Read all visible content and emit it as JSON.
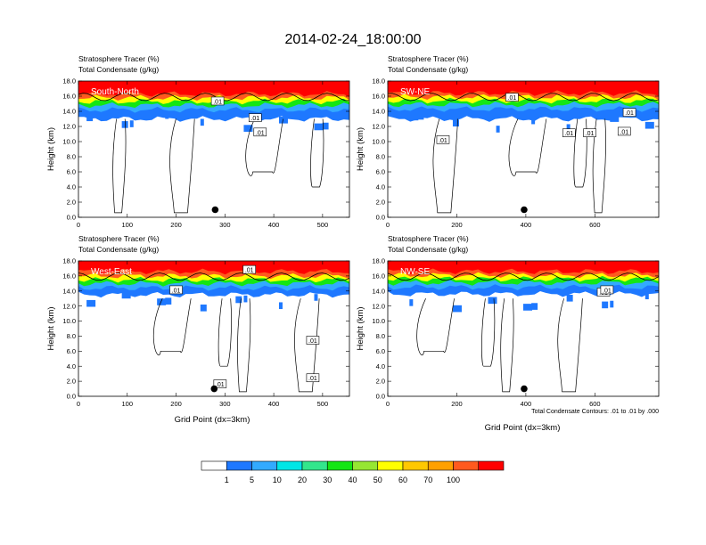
{
  "figure": {
    "title": "2014-02-24_18:00:00",
    "x_axis_label": "Grid Point (dx=3km)",
    "y_axis_label": "Height (km)",
    "contour_note": "Total Condensate Contours: .01 to .01 by .000"
  },
  "panels": [
    {
      "id": "south-north",
      "section_label": "South-North",
      "header_line1": "Stratosphere Tracer   (%)",
      "header_line2": "Total Condensate   (g/kg)",
      "x_ticks": [
        "0",
        "100",
        "200",
        "300",
        "400",
        "500"
      ],
      "x_max": 555,
      "y_ticks": [
        "0.0",
        "2.0",
        "4.0",
        "6.0",
        "8.0",
        "10.0",
        "12.0",
        "14.0",
        "16.0",
        "18.0"
      ],
      "marker_x": 280,
      "contour_labels": [
        {
          "text": ".01",
          "x": 285,
          "y": 15.3
        },
        {
          "text": ".01",
          "x": 362,
          "y": 13.1
        },
        {
          "text": ".01",
          "x": 372,
          "y": 11.2
        }
      ]
    },
    {
      "id": "sw-ne",
      "section_label": "SW-NE",
      "header_line1": "Stratosphere Tracer   (%)",
      "header_line2": "Total Condensate   (g/kg)",
      "x_ticks": [
        "0",
        "200",
        "400",
        "600"
      ],
      "x_max": 785,
      "y_ticks": [
        "0.0",
        "2.0",
        "4.0",
        "6.0",
        "8.0",
        "10.0",
        "12.0",
        "14.0",
        "16.0",
        "18.0"
      ],
      "marker_x": 395,
      "contour_labels": [
        {
          "text": ".01",
          "x": 360,
          "y": 15.8
        },
        {
          "text": ".01",
          "x": 160,
          "y": 10.2
        },
        {
          "text": ".01",
          "x": 525,
          "y": 11.1
        },
        {
          "text": ".01",
          "x": 585,
          "y": 11.1
        },
        {
          "text": ".01",
          "x": 685,
          "y": 11.3
        },
        {
          "text": ".01",
          "x": 700,
          "y": 13.8
        }
      ]
    },
    {
      "id": "west-east",
      "section_label": "West-East",
      "header_line1": "Stratosphere Tracer   (%)",
      "header_line2": "Total Condensate   (g/kg)",
      "x_ticks": [
        "0",
        "100",
        "200",
        "300",
        "400",
        "500"
      ],
      "x_max": 555,
      "y_ticks": [
        "0.0",
        "2.0",
        "4.0",
        "6.0",
        "8.0",
        "10.0",
        "12.0",
        "14.0",
        "16.0",
        "18.0"
      ],
      "marker_x": 278,
      "contour_labels": [
        {
          "text": ".01",
          "x": 350,
          "y": 16.8
        },
        {
          "text": ".01",
          "x": 200,
          "y": 14.1
        },
        {
          "text": ".01",
          "x": 480,
          "y": 7.4
        },
        {
          "text": ".01",
          "x": 480,
          "y": 2.4
        },
        {
          "text": ".01",
          "x": 290,
          "y": 1.6
        }
      ]
    },
    {
      "id": "nw-se",
      "section_label": "NW-SE",
      "header_line1": "Stratosphere Tracer   (%)",
      "header_line2": "Total Condensate   (g/kg)",
      "x_ticks": [
        "0",
        "200",
        "400",
        "600"
      ],
      "x_max": 785,
      "y_ticks": [
        "0.0",
        "2.0",
        "4.0",
        "6.0",
        "8.0",
        "10.0",
        "12.0",
        "14.0",
        "16.0",
        "18.0"
      ],
      "marker_x": 395,
      "contour_labels": [
        {
          "text": ".01",
          "x": 625,
          "y": 13.8
        },
        {
          "text": ".01",
          "x": 635,
          "y": 14.1
        }
      ]
    }
  ],
  "colorbar": {
    "labels": [
      "1",
      "5",
      "10",
      "20",
      "30",
      "40",
      "50",
      "60",
      "70",
      "100"
    ],
    "colors": [
      "#ffffff",
      "#1e78ff",
      "#32aaff",
      "#00e6e6",
      "#32e68c",
      "#14e614",
      "#96e632",
      "#ffff00",
      "#ffc800",
      "#ffa000",
      "#ff5a1e",
      "#ff0000"
    ]
  },
  "chart_data": [
    {
      "type": "heatmap",
      "title": "South-North",
      "xlabel": "",
      "ylabel": "Height (km)",
      "xlim": [
        0,
        555
      ],
      "ylim": [
        0,
        18
      ],
      "levels_percent": [
        1,
        5,
        10,
        20,
        30,
        40,
        50,
        60,
        70,
        100
      ],
      "variables": [
        "Stratosphere Tracer (%)",
        "Total Condensate (g/kg)"
      ],
      "tracer_layers_km": [
        {
          "percent": 100,
          "bottom": 16.3,
          "top": 18.0
        },
        {
          "percent": 70,
          "bottom": 15.8,
          "top": 16.3
        },
        {
          "percent": 50,
          "bottom": 15.3,
          "top": 15.8
        },
        {
          "percent": 30,
          "bottom": 14.8,
          "top": 15.3
        },
        {
          "percent": 10,
          "bottom": 14.2,
          "top": 14.8
        },
        {
          "percent": 5,
          "bottom": 13.0,
          "top": 14.2
        }
      ],
      "condensate_contour": 0.01,
      "marker": {
        "x": 280,
        "height_km": 1.0
      }
    },
    {
      "type": "heatmap",
      "title": "SW-NE",
      "xlabel": "",
      "ylabel": "Height (km)",
      "xlim": [
        0,
        785
      ],
      "ylim": [
        0,
        18
      ],
      "levels_percent": [
        1,
        5,
        10,
        20,
        30,
        40,
        50,
        60,
        70,
        100
      ],
      "variables": [
        "Stratosphere Tracer (%)",
        "Total Condensate (g/kg)"
      ],
      "tracer_layers_km": [
        {
          "percent": 100,
          "bottom": 16.4,
          "top": 18.0
        },
        {
          "percent": 70,
          "bottom": 15.9,
          "top": 16.4
        },
        {
          "percent": 50,
          "bottom": 15.4,
          "top": 15.9
        },
        {
          "percent": 30,
          "bottom": 14.9,
          "top": 15.4
        },
        {
          "percent": 10,
          "bottom": 14.3,
          "top": 14.9
        },
        {
          "percent": 5,
          "bottom": 13.0,
          "top": 14.3
        }
      ],
      "condensate_contour": 0.01,
      "marker": {
        "x": 395,
        "height_km": 1.0
      }
    },
    {
      "type": "heatmap",
      "title": "West-East",
      "xlabel": "Grid Point (dx=3km)",
      "ylabel": "Height (km)",
      "xlim": [
        0,
        555
      ],
      "ylim": [
        0,
        18
      ],
      "levels_percent": [
        1,
        5,
        10,
        20,
        30,
        40,
        50,
        60,
        70,
        100
      ],
      "variables": [
        "Stratosphere Tracer (%)",
        "Total Condensate (g/kg)"
      ],
      "tracer_layers_km": [
        {
          "percent": 100,
          "bottom": 16.6,
          "top": 18.0
        },
        {
          "percent": 70,
          "bottom": 16.0,
          "top": 16.6
        },
        {
          "percent": 50,
          "bottom": 15.5,
          "top": 16.0
        },
        {
          "percent": 30,
          "bottom": 15.0,
          "top": 15.5
        },
        {
          "percent": 10,
          "bottom": 14.4,
          "top": 15.0
        },
        {
          "percent": 5,
          "bottom": 13.5,
          "top": 14.4
        }
      ],
      "condensate_contour": 0.01,
      "marker": {
        "x": 278,
        "height_km": 1.0
      }
    },
    {
      "type": "heatmap",
      "title": "NW-SE",
      "xlabel": "Grid Point (dx=3km)",
      "ylabel": "Height (km)",
      "xlim": [
        0,
        785
      ],
      "ylim": [
        0,
        18
      ],
      "levels_percent": [
        1,
        5,
        10,
        20,
        30,
        40,
        50,
        60,
        70,
        100
      ],
      "variables": [
        "Stratosphere Tracer (%)",
        "Total Condensate (g/kg)"
      ],
      "tracer_layers_km": [
        {
          "percent": 100,
          "bottom": 16.6,
          "top": 18.0
        },
        {
          "percent": 70,
          "bottom": 16.1,
          "top": 16.6
        },
        {
          "percent": 50,
          "bottom": 15.6,
          "top": 16.1
        },
        {
          "percent": 30,
          "bottom": 15.1,
          "top": 15.6
        },
        {
          "percent": 10,
          "bottom": 14.5,
          "top": 15.1
        },
        {
          "percent": 5,
          "bottom": 13.6,
          "top": 14.5
        }
      ],
      "condensate_contour": 0.01,
      "marker": {
        "x": 395,
        "height_km": 1.0
      }
    }
  ]
}
